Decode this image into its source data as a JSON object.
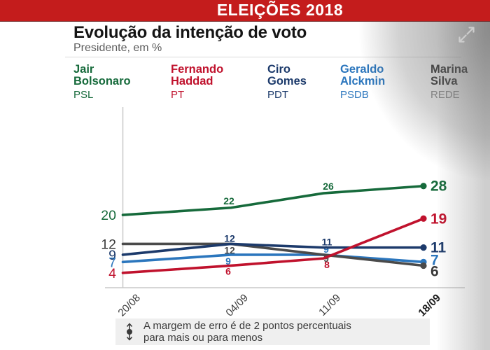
{
  "banner": {
    "text": "ELEIÇÕES 2018",
    "bg_color": "#c41c1c"
  },
  "header": {
    "title": "Evolução da intenção de voto",
    "subtitle": "Presidente, em %"
  },
  "icons": {
    "expand": "expand-icon",
    "error_margin": "error-margin-arrow-icon"
  },
  "chart_data": {
    "type": "line",
    "title": "Evolução da intenção de voto",
    "subtitle": "Presidente, em %",
    "x": [
      "20/08",
      "04/09",
      "11/09",
      "18/09"
    ],
    "ylim": [
      0,
      50
    ],
    "grid": false,
    "legend_position": "top",
    "series": [
      {
        "id": "bolsonaro",
        "name": "Jair Bolsonaro",
        "party": "PSL",
        "color": "#166a3b",
        "values": [
          20,
          22,
          26,
          28
        ]
      },
      {
        "id": "haddad",
        "name": "Fernando Haddad",
        "party": "PT",
        "color": "#c0122d",
        "values": [
          4,
          6,
          8,
          19
        ]
      },
      {
        "id": "ciro",
        "name": "Ciro Gomes",
        "party": "PDT",
        "color": "#1c3a6b",
        "values": [
          9,
          12,
          11,
          11
        ]
      },
      {
        "id": "alckmin",
        "name": "Geraldo Alckmin",
        "party": "PSDB",
        "color": "#2b76bd",
        "values": [
          7,
          9,
          9,
          7
        ]
      },
      {
        "id": "marina",
        "name": "Marina Silva",
        "party": "REDE",
        "color": "#4a4a4a",
        "label_color": "#3a3a3a",
        "name_color": "#333333",
        "party_color": "#8c8c8c",
        "values": [
          12,
          12,
          9,
          6
        ]
      }
    ]
  },
  "footnote": {
    "line1": "A margem de erro é de 2 pontos percentuais",
    "line2": "para mais ou para menos"
  }
}
